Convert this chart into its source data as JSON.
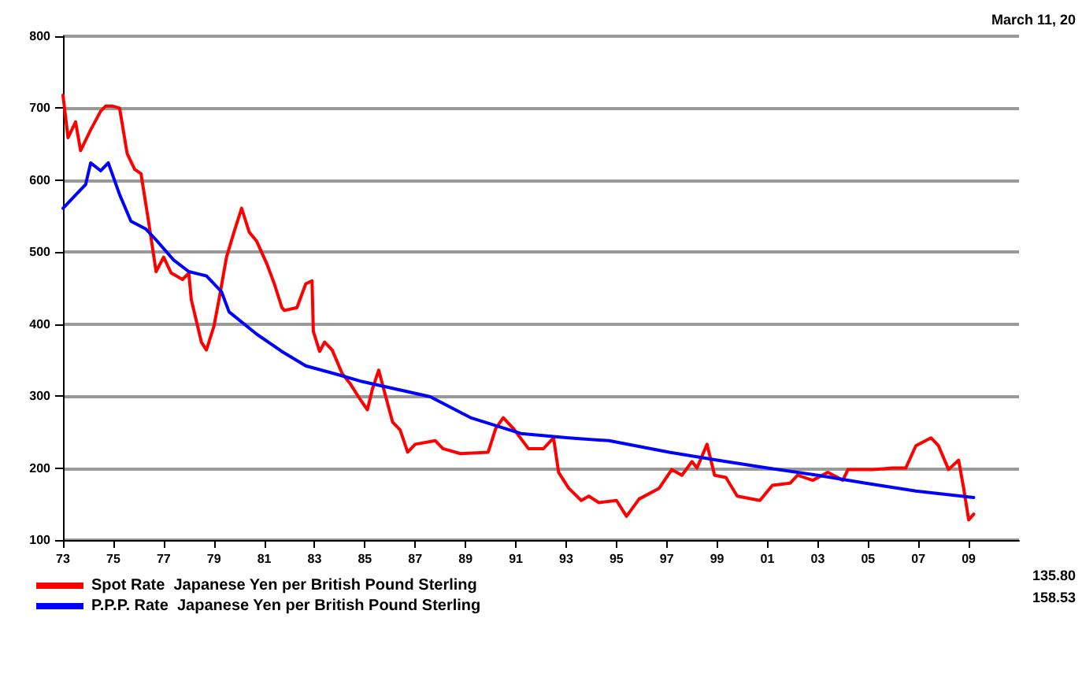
{
  "chart_data": {
    "type": "line",
    "annotations": [
      "March 11, 20",
      "135.80",
      "158.53"
    ],
    "xlim": [
      1973,
      2011
    ],
    "xticks": [
      {
        "value": 1973,
        "label": "73"
      },
      {
        "value": 1975,
        "label": "75"
      },
      {
        "value": 1977,
        "label": "77"
      },
      {
        "value": 1979,
        "label": "79"
      },
      {
        "value": 1981,
        "label": "81"
      },
      {
        "value": 1983,
        "label": "83"
      },
      {
        "value": 1985,
        "label": "85"
      },
      {
        "value": 1987,
        "label": "87"
      },
      {
        "value": 1989,
        "label": "89"
      },
      {
        "value": 1991,
        "label": "91"
      },
      {
        "value": 1993,
        "label": "93"
      },
      {
        "value": 1995,
        "label": "95"
      },
      {
        "value": 1997,
        "label": "97"
      },
      {
        "value": 1999,
        "label": "99"
      },
      {
        "value": 2001,
        "label": "01"
      },
      {
        "value": 2003,
        "label": "03"
      },
      {
        "value": 2005,
        "label": "05"
      },
      {
        "value": 2007,
        "label": "07"
      },
      {
        "value": 2009,
        "label": "09"
      }
    ],
    "ylim": [
      100,
      800
    ],
    "yticks": [
      100,
      200,
      300,
      400,
      500,
      600,
      700,
      800
    ],
    "grid": "y",
    "legend": "bottom left",
    "marker": "none",
    "line_style": "solid",
    "series": [
      {
        "name": "Spot Rate  Japanese Yen per British Pound Sterling",
        "color": "#ff0000",
        "x": [
          1973.0,
          1973.2,
          1973.5,
          1973.7,
          1974.1,
          1974.5,
          1974.7,
          1974.95,
          1975.25,
          1975.55,
          1975.85,
          1976.1,
          1976.4,
          1976.7,
          1977.0,
          1977.3,
          1977.75,
          1978.0,
          1978.1,
          1978.5,
          1978.7,
          1979.0,
          1979.2,
          1979.5,
          1979.8,
          1980.1,
          1980.4,
          1980.7,
          1981.1,
          1981.4,
          1981.7,
          1981.8,
          1982.3,
          1982.65,
          1982.9,
          1982.95,
          1983.2,
          1983.4,
          1983.7,
          1984.1,
          1984.4,
          1984.8,
          1985.1,
          1985.3,
          1985.55,
          1985.8,
          1986.1,
          1986.4,
          1986.7,
          1987.0,
          1987.8,
          1988.1,
          1988.8,
          1989.9,
          1990.2,
          1990.5,
          1990.9,
          1991.5,
          1992.1,
          1992.5,
          1992.7,
          1993.1,
          1993.6,
          1993.9,
          1994.3,
          1995.0,
          1995.4,
          1995.9,
          1996.7,
          1997.2,
          1997.6,
          1998.0,
          1998.2,
          1998.6,
          1998.9,
          1999.35,
          1999.8,
          2000.7,
          2001.2,
          2001.9,
          2002.2,
          2002.8,
          2003.4,
          2004.0,
          2004.2,
          2005.2,
          2006.0,
          2006.5,
          2006.9,
          2007.5,
          2007.8,
          2008.2,
          2008.6,
          2008.8,
          2009.0,
          2009.2
        ],
        "values": [
          718,
          659,
          681,
          641,
          670,
          696,
          703,
          703,
          700,
          637,
          615,
          609,
          543,
          473,
          493,
          471,
          462,
          471,
          434,
          375,
          364,
          397,
          434,
          493,
          528,
          561,
          528,
          515,
          484,
          456,
          423,
          419,
          423,
          456,
          460,
          390,
          362,
          375,
          364,
          331,
          318,
          296,
          281,
          310,
          336,
          303,
          264,
          253,
          222,
          233,
          238,
          227,
          220,
          222,
          255,
          270,
          255,
          227,
          227,
          242,
          194,
          172,
          155,
          161,
          152,
          155,
          133,
          157,
          172,
          198,
          190,
          209,
          200,
          233,
          190,
          187,
          161,
          155,
          176,
          179,
          190,
          183,
          194,
          183,
          198,
          198,
          200,
          200,
          231,
          242,
          231,
          198,
          211,
          172,
          128,
          136
        ]
      },
      {
        "name": "P.P.P. Rate  Japanese Yen per British Pound Sterling",
        "color": "#0000ff",
        "x": [
          1973.0,
          1973.6,
          1973.9,
          1974.1,
          1974.5,
          1974.8,
          1975.25,
          1975.7,
          1976.3,
          1976.7,
          1977.4,
          1978.0,
          1978.7,
          1979.3,
          1979.6,
          1980.7,
          1981.7,
          1982.65,
          1983.8,
          1984.8,
          1986.2,
          1987.6,
          1989.2,
          1990.2,
          1991.2,
          1993.1,
          1994.7,
          1997.1,
          1999.0,
          2001.0,
          2003.0,
          2004.9,
          2006.9,
          2009.2
        ],
        "values": [
          561,
          583,
          594,
          624,
          613,
          624,
          580,
          543,
          532,
          517,
          489,
          473,
          467,
          445,
          417,
          386,
          362,
          342,
          331,
          321,
          310,
          299,
          270,
          259,
          248,
          242,
          238,
          222,
          211,
          200,
          190,
          179,
          168,
          159
        ]
      }
    ]
  }
}
